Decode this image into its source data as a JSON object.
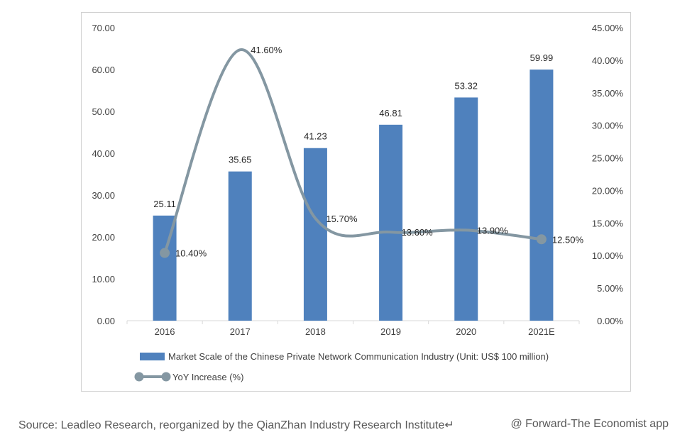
{
  "chart_data": {
    "type": "bar",
    "categories": [
      "2016",
      "2017",
      "2018",
      "2019",
      "2020",
      "2021E"
    ],
    "series": [
      {
        "name": "Market Scale of the Chinese Private Network Communication Industry (Unit: US$ 100 million)",
        "type": "bar",
        "axis": "left",
        "values": [
          25.11,
          35.65,
          41.23,
          46.81,
          53.32,
          59.99
        ],
        "labels": [
          "25.11",
          "35.65",
          "41.23",
          "46.81",
          "53.32",
          "59.99"
        ],
        "color": "#4f81bd"
      },
      {
        "name": "YoY Increase (%)",
        "type": "line",
        "axis": "right",
        "values": [
          10.4,
          41.6,
          15.7,
          13.6,
          13.9,
          12.5
        ],
        "labels": [
          "10.40%",
          "41.60%",
          "15.70%",
          "13.60%",
          "13.90%",
          "12.50%"
        ],
        "color": "#8497a2",
        "markers_on": [
          "2016",
          "2021E"
        ]
      }
    ],
    "y_left": {
      "ylim": [
        0,
        70
      ],
      "ticks": [
        "0.00",
        "10.00",
        "20.00",
        "30.00",
        "40.00",
        "50.00",
        "60.00",
        "70.00"
      ]
    },
    "y_right": {
      "ylim": [
        0,
        45
      ],
      "ticks": [
        "0.00%",
        "5.00%",
        "10.00%",
        "15.00%",
        "20.00%",
        "25.00%",
        "30.00%",
        "35.00%",
        "40.00%",
        "45.00%"
      ]
    },
    "grid": false,
    "legend": "bottom"
  },
  "footer": {
    "source": "Source: Leadleo Research, reorganized by the QianZhan Industry Research Institute↵",
    "credit": "@ Forward-The Economist app"
  }
}
